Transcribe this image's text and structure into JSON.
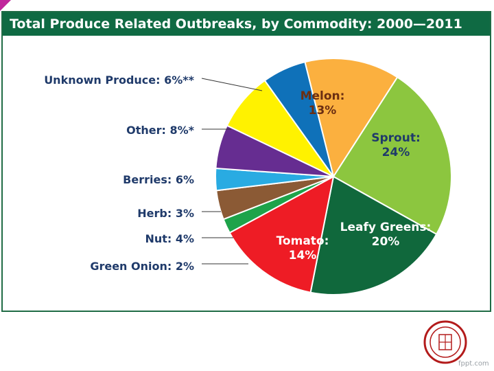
{
  "slide": {
    "watermark": "fppt.com",
    "logo_icon": "university-seal-icon",
    "accent_color": "#c0269c",
    "frame_color": "#0f6a43"
  },
  "chart_data": {
    "type": "pie",
    "title": "Total Produce Related Outbreaks, by Commodity: 2000—2011",
    "start_angle_deg": -14,
    "direction": "clockwise",
    "slices": [
      {
        "name": "Melon",
        "value": 13,
        "color": "#fbb03f",
        "label_lines": [
          "Melon:",
          "13%"
        ],
        "label_placement": "inside",
        "label_color": "#6b2e12"
      },
      {
        "name": "Sprout",
        "value": 24,
        "color": "#8cc63f",
        "label_lines": [
          "Sprout:",
          "24%"
        ],
        "label_placement": "inside",
        "label_color": "#1f3a6a"
      },
      {
        "name": "Leafy Greens",
        "value": 20,
        "color": "#10683c",
        "label_lines": [
          "Leafy Greens:",
          "20%"
        ],
        "label_placement": "inside",
        "label_color": "#ffffff"
      },
      {
        "name": "Tomato",
        "value": 14,
        "color": "#ee1c25",
        "label_lines": [
          "Tomato:",
          "14%"
        ],
        "label_placement": "inside",
        "label_color": "#ffffff"
      },
      {
        "name": "Green Onion",
        "value": 2,
        "color": "#1ea34a",
        "label_lines": [
          "Green Onion: 2%"
        ],
        "label_placement": "outside",
        "label_color": "#1f3a6a"
      },
      {
        "name": "Nut",
        "value": 4,
        "color": "#8b5a35",
        "label_lines": [
          "Nut: 4%"
        ],
        "label_placement": "outside",
        "label_color": "#1f3a6a"
      },
      {
        "name": "Herb",
        "value": 3,
        "color": "#29abe2",
        "label_lines": [
          "Herb: 3%"
        ],
        "label_placement": "outside",
        "label_color": "#1f3a6a"
      },
      {
        "name": "Berries",
        "value": 6,
        "color": "#662d91",
        "label_lines": [
          "Berries: 6%"
        ],
        "label_placement": "outside",
        "label_color": "#1f3a6a"
      },
      {
        "name": "Other",
        "value": 8,
        "color": "#fff200",
        "label_lines": [
          "Other: 8%*"
        ],
        "label_placement": "outside",
        "label_color": "#1f3a6a"
      },
      {
        "name": "Unknown Produce",
        "value": 6,
        "color": "#0f71b9",
        "label_lines": [
          "Unknown Produce: 6%**"
        ],
        "label_placement": "outside",
        "label_color": "#1f3a6a"
      }
    ]
  }
}
